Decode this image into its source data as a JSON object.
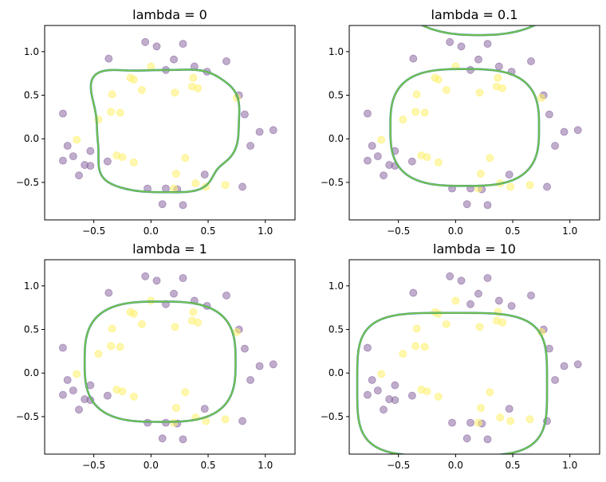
{
  "chart_data": [
    {
      "type": "scatter",
      "title": "lambda = 0",
      "lambda": 0,
      "xlim": [
        -0.93,
        1.26
      ],
      "ylim": [
        -0.93,
        1.3
      ],
      "xticks": [
        -0.5,
        0.0,
        0.5,
        1.0
      ],
      "xtick_labels": [
        "−0.5",
        "0.0",
        "0.5",
        "1.0"
      ],
      "yticks": [
        -0.5,
        0.0,
        0.5,
        1.0
      ],
      "ytick_labels": [
        "−0.5",
        "0.0",
        "0.5",
        "1.0"
      ],
      "boundary": {
        "color": "#7ac943",
        "edge_color": "#3a8f8a",
        "cx": 0.1,
        "cy": 0.13,
        "rx": 0.62,
        "ry": 0.7,
        "power": 3.5,
        "wiggle": 0.09
      }
    },
    {
      "type": "scatter",
      "title": "lambda = 0.1",
      "lambda": 0.1,
      "xlim": [
        -0.93,
        1.26
      ],
      "ylim": [
        -0.93,
        1.3
      ],
      "xticks": [
        -0.5,
        0.0,
        0.5,
        1.0
      ],
      "xtick_labels": [
        "−0.5",
        "0.0",
        "0.5",
        "1.0"
      ],
      "yticks": [
        -0.5,
        0.0,
        0.5,
        1.0
      ],
      "ytick_labels": [
        "−0.5",
        "0.0",
        "0.5",
        "1.0"
      ],
      "boundary": {
        "color": "#7ac943",
        "edge_color": "#3a8f8a",
        "cx": 0.08,
        "cy": 0.13,
        "rx": 0.65,
        "ry": 0.67,
        "power": 3,
        "wiggle": 0,
        "extra_arc": {
          "cx": 0.2,
          "cy": 1.85,
          "rx": 0.75,
          "ry": 0.66
        }
      }
    },
    {
      "type": "scatter",
      "title": "lambda = 1",
      "lambda": 1,
      "xlim": [
        -0.93,
        1.26
      ],
      "ylim": [
        -0.93,
        1.3
      ],
      "xticks": [
        -0.5,
        0.0,
        0.5,
        1.0
      ],
      "xtick_labels": [
        "−0.5",
        "0.0",
        "0.5",
        "1.0"
      ],
      "yticks": [
        -0.5,
        0.0,
        0.5,
        1.0
      ],
      "ytick_labels": [
        "−0.5",
        "0.0",
        "0.5",
        "1.0"
      ],
      "boundary": {
        "color": "#7ac943",
        "edge_color": "#3a8f8a",
        "cx": 0.08,
        "cy": 0.13,
        "rx": 0.66,
        "ry": 0.69,
        "power": 3,
        "wiggle": 0
      }
    },
    {
      "type": "scatter",
      "title": "lambda = 10",
      "lambda": 10,
      "xlim": [
        -0.93,
        1.26
      ],
      "ylim": [
        -0.93,
        1.3
      ],
      "xticks": [
        -0.5,
        0.0,
        0.5,
        1.0
      ],
      "xtick_labels": [
        "−0.5",
        "0.0",
        "0.5",
        "1.0"
      ],
      "yticks": [
        -0.5,
        0.0,
        0.5,
        1.0
      ],
      "ytick_labels": [
        "−0.5",
        "0.0",
        "0.5",
        "1.0"
      ],
      "boundary": {
        "color": "#7ac943",
        "edge_color": "#3a8f8a",
        "cx": -0.03,
        "cy": -0.13,
        "rx": 0.83,
        "ry": 0.82,
        "power": 4,
        "wiggle": 0
      }
    }
  ],
  "points": {
    "class0_color": "#8c6aa3",
    "class1_color": "#fdf06a",
    "class0": [
      [
        -0.05,
        1.11
      ],
      [
        0.05,
        1.06
      ],
      [
        0.28,
        1.09
      ],
      [
        -0.37,
        0.92
      ],
      [
        0.2,
        0.91
      ],
      [
        0.66,
        0.89
      ],
      [
        0.38,
        0.83
      ],
      [
        0.49,
        0.77
      ],
      [
        0.13,
        0.79
      ],
      [
        0.77,
        0.5
      ],
      [
        0.82,
        0.28
      ],
      [
        -0.77,
        0.29
      ],
      [
        0.95,
        0.08
      ],
      [
        1.07,
        0.1
      ],
      [
        -0.73,
        -0.08
      ],
      [
        0.87,
        -0.08
      ],
      [
        -0.53,
        -0.14
      ],
      [
        -0.77,
        -0.25
      ],
      [
        -0.68,
        -0.2
      ],
      [
        -0.38,
        -0.26
      ],
      [
        -0.58,
        -0.3
      ],
      [
        -0.53,
        -0.31
      ],
      [
        -0.63,
        -0.42
      ],
      [
        0.47,
        -0.41
      ],
      [
        0.13,
        -0.57
      ],
      [
        -0.03,
        -0.57
      ],
      [
        0.23,
        -0.58
      ],
      [
        0.8,
        -0.55
      ],
      [
        0.1,
        -0.75
      ],
      [
        0.28,
        -0.76
      ]
    ],
    "class1": [
      [
        -0.18,
        0.7
      ],
      [
        -0.15,
        0.68
      ],
      [
        0.0,
        0.83
      ],
      [
        0.36,
        0.6
      ],
      [
        0.37,
        0.7
      ],
      [
        0.21,
        0.53
      ],
      [
        0.41,
        0.58
      ],
      [
        -0.08,
        0.56
      ],
      [
        0.75,
        0.47
      ],
      [
        -0.34,
        0.51
      ],
      [
        -0.35,
        0.31
      ],
      [
        -0.27,
        0.3
      ],
      [
        -0.46,
        0.22
      ],
      [
        -0.65,
        -0.01
      ],
      [
        -0.3,
        -0.19
      ],
      [
        -0.25,
        -0.21
      ],
      [
        -0.15,
        -0.27
      ],
      [
        0.3,
        -0.22
      ],
      [
        0.22,
        -0.4
      ],
      [
        0.39,
        -0.51
      ],
      [
        0.2,
        -0.57
      ],
      [
        0.48,
        -0.55
      ],
      [
        0.65,
        -0.53
      ]
    ]
  }
}
